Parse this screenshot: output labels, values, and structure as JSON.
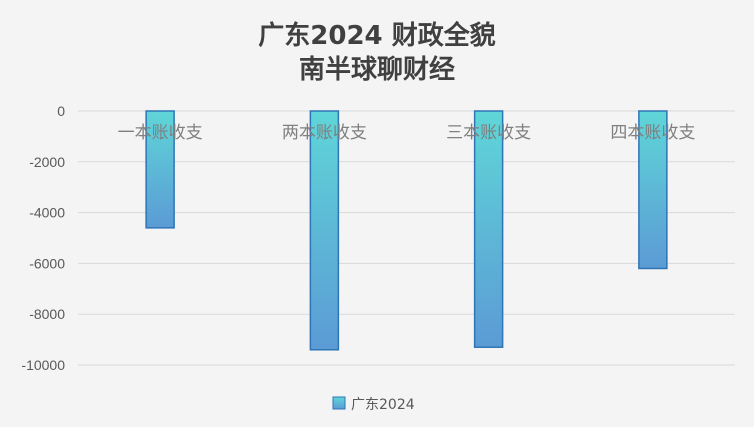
{
  "chart_data": {
    "type": "bar",
    "title_lines": [
      "广东2024 财政全貌",
      "南半球聊财经"
    ],
    "categories": [
      "一本账收支",
      "两本账收支",
      "三本账收支",
      "四本账收支"
    ],
    "series": [
      {
        "name": "广东2024",
        "values": [
          -4600,
          -9400,
          -9300,
          -6200
        ]
      }
    ],
    "ylim": [
      -10000,
      0
    ],
    "yticks": [
      0,
      -2000,
      -4000,
      -6000,
      -8000,
      -10000
    ],
    "ytick_labels": [
      "0",
      "-2000",
      "-4000",
      "-6000",
      "-8000",
      "-10000"
    ],
    "grid": true,
    "legend_position": "bottom",
    "colors": {
      "bar_top": "#5fd6d8",
      "bar_bottom": "#5b9bd5",
      "bar_border": "#2e75b6",
      "gridline": "#d9d9d9",
      "title": "#404040"
    }
  }
}
